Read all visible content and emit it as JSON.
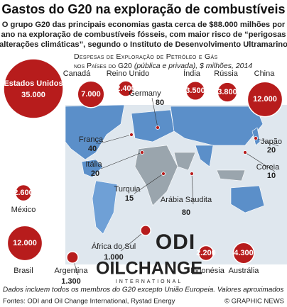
{
  "chart_data": {
    "type": "bubble",
    "title": "Gastos do G20 na exploração de combustíveis",
    "subtitle": [
      "O grupo G20 das principais economias gasta cerca de $88.000 milhões por",
      "ano na exploração de combustíveis fósseis, com maior risco de “perigosas",
      "alterações climáticas”, segundo o Instituto de Desenvolvimento Ultramarino"
    ],
    "box_title": [
      "Despesas de Exploração de Petróleo e Gás",
      "nos Países do G20",
      "(pública e privada)",
      ", $ milhões, 2014"
    ],
    "categories": [
      "Estados Unidos",
      "Canadá",
      "Reino Unido",
      "Germany",
      "Índia",
      "Rússia",
      "China",
      "França",
      "Itália",
      "Japão",
      "Coreia",
      "Turquia",
      "México",
      "Arábia Saudita",
      "Brasil",
      "Argentina",
      "África do Sul",
      "Indonésia",
      "Austrália"
    ],
    "values": [
      35000,
      7000,
      2400,
      80,
      3500,
      3800,
      12000,
      40,
      20,
      20,
      10,
      15,
      2600,
      80,
      12000,
      1300,
      1000,
      2200,
      4300
    ],
    "value_labels": [
      "35.000",
      "7.000",
      "2.400",
      "80",
      "3.500",
      "3.800",
      "12.000",
      "40",
      "20",
      "20",
      "10",
      "15",
      "2.600",
      "80",
      "12.000",
      "1.300",
      "1.000",
      "2.200",
      "4.300"
    ],
    "color": "#b71c1c",
    "logos": [
      "ODI",
      "OILCHANGE",
      "INTERNATIONAL"
    ],
    "note": "Dados incluem todos os membros do G20 excepto União Europeia. Valores aproximados",
    "source": "Fontes: ODI and Oil Change International, Rystad Energy",
    "credit": "© GRAPHIC NEWS"
  }
}
